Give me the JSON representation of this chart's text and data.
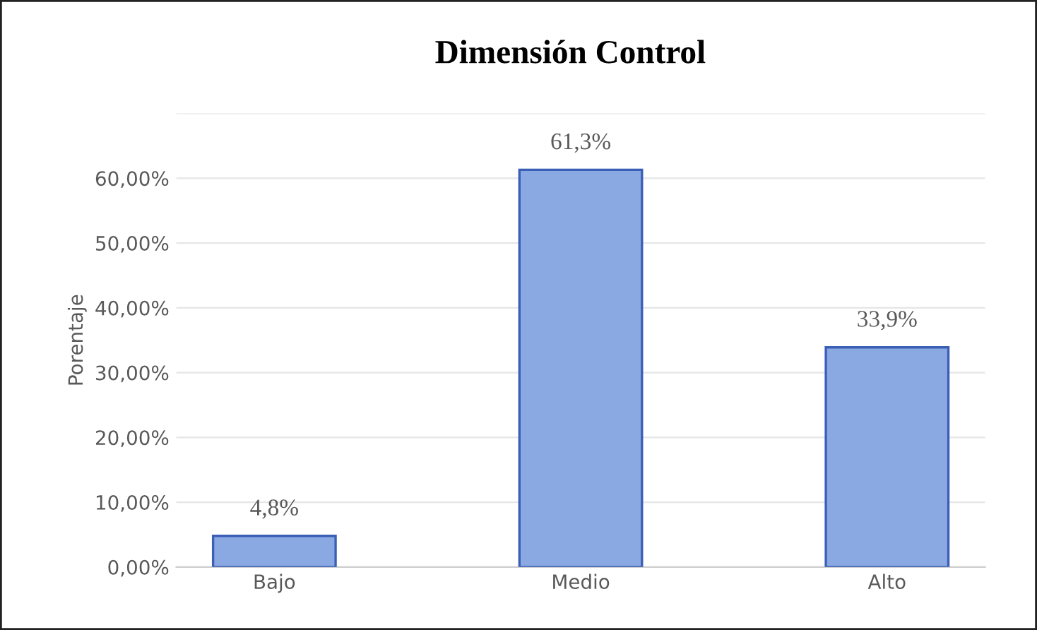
{
  "chart_data": {
    "type": "bar",
    "title": "Dimensión Control",
    "ylabel": "Porentaje",
    "categories": [
      "Bajo",
      "Medio",
      "Alto"
    ],
    "values": [
      4.8,
      61.3,
      33.9
    ],
    "value_labels": [
      "4,8%",
      "61,3%",
      "33,9%"
    ],
    "color": "#8aa8e2",
    "ylim": [
      0,
      70
    ],
    "yticks": [
      {
        "value": 0,
        "label": "0,00%"
      },
      {
        "value": 10,
        "label": "10,00%"
      },
      {
        "value": 20,
        "label": "20,00%"
      },
      {
        "value": 30,
        "label": "30,00%"
      },
      {
        "value": 40,
        "label": "40,00%"
      },
      {
        "value": 50,
        "label": "50,00%"
      },
      {
        "value": 60,
        "label": "60,00%"
      },
      {
        "value": 70,
        "label": null
      }
    ],
    "grid": "y"
  }
}
